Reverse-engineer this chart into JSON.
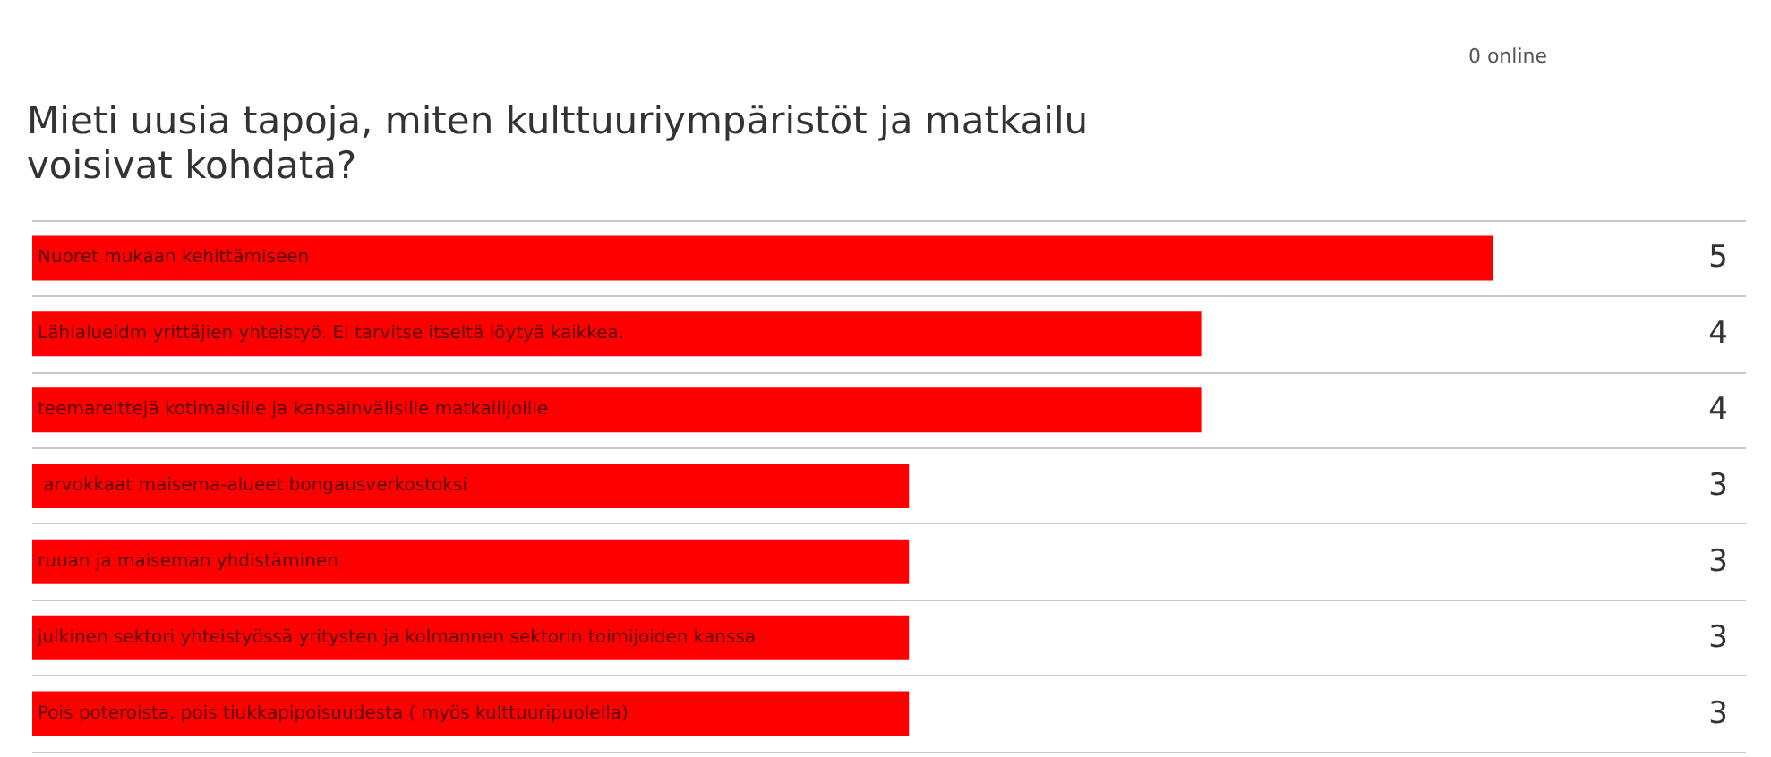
{
  "chart_data": {
    "type": "bar",
    "orientation": "horizontal",
    "title": "Mieti uusia tapoja, miten kulttuuriympäristöt ja matkailu voisivat kohdata?",
    "categories": [
      "Nuoret mukaan kehittämiseen",
      "Lähialueidm yrittäjien yhteistyö. Ei tarvitse itseltä löytyä kaikkea.",
      "teemareittejä kotimaisille ja kansainvälisille matkailijoille",
      " arvokkaat maisema-alueet bongausverkostoksi",
      "ruuan ja maiseman yhdistäminen",
      "julkinen sektori yhteistyössä yritysten ja kolmannen sektorin toimijoiden kanssa",
      "Pois poteroista, pois tiukkapipoisuudesta ( myös kulttuuripuolella)"
    ],
    "values": [
      5,
      4,
      4,
      3,
      3,
      3,
      3
    ],
    "color": "#ff0000",
    "data_labels": true,
    "grid": "y",
    "annotations": [
      "0 online"
    ]
  }
}
